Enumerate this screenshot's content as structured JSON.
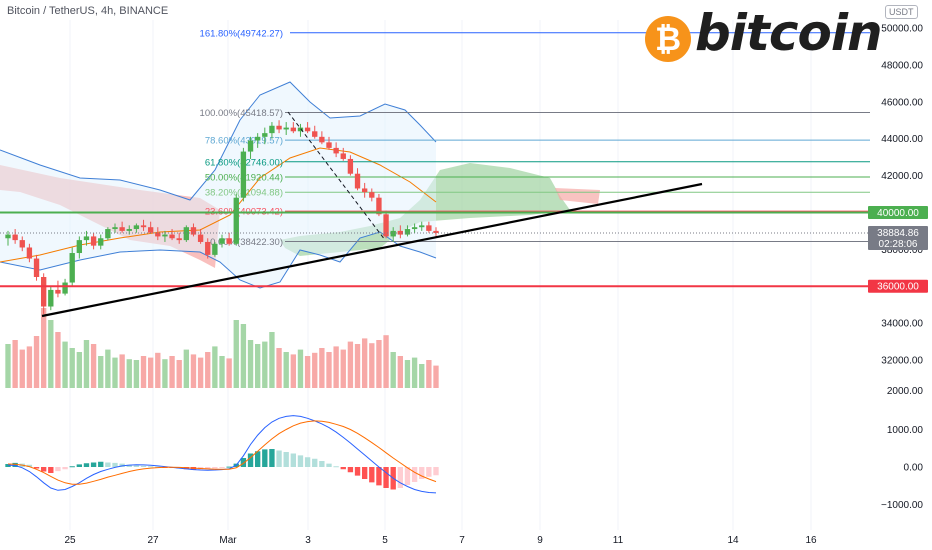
{
  "header": {
    "title": "Bitcoin / TetherUS, 4h, BINANCE"
  },
  "logo": {
    "symbol": "₿",
    "text": "bitcoin"
  },
  "unit_badge": "USDT",
  "chart_data": {
    "type": "candlestick",
    "title": "Bitcoin / TetherUS, 4h, BINANCE",
    "y_range": [
      30500,
      50500
    ],
    "y_ticks": [
      {
        "value": 50000,
        "label": "50000.00"
      },
      {
        "value": 48000,
        "label": "48000.00"
      },
      {
        "value": 46000,
        "label": "46000.00"
      },
      {
        "value": 44000,
        "label": "44000.00"
      },
      {
        "value": 42000,
        "label": "42000.00"
      },
      {
        "value": 38000,
        "label": "38000.00"
      },
      {
        "value": 34000,
        "label": "34000.00"
      },
      {
        "value": 32000,
        "label": "32000.00"
      }
    ],
    "x_ticks": [
      "25",
      "27",
      "Mar",
      "3",
      "5",
      "7",
      "9",
      "11",
      "14",
      "16"
    ],
    "price_tags": [
      {
        "value": 40000,
        "label": "40000.00",
        "color": "#4caf50"
      },
      {
        "value": 36000,
        "label": "36000.00",
        "color": "#f23645"
      },
      {
        "value": 38884.86,
        "label": "38884.86",
        "sublabel": "02:28:06",
        "color": "#787b86"
      }
    ],
    "fib_levels": [
      {
        "label": "161.80%(49742.27)",
        "value": 49742.27,
        "color": "#2962ff"
      },
      {
        "label": "100.00%(45418.57)",
        "value": 45418.57,
        "color": "#787b86"
      },
      {
        "label": "78.60%(43919.57)",
        "value": 43919.57,
        "color": "#5fa8d3"
      },
      {
        "label": "61.80%(42746.00)",
        "value": 42746.0,
        "color": "#089981"
      },
      {
        "label": "50.00%(41920.44)",
        "value": 41920.44,
        "color": "#4caf50"
      },
      {
        "label": "38.20%(41094.88)",
        "value": 41094.88,
        "color": "#81c784"
      },
      {
        "label": "23.60%(40073.42)",
        "value": 40073.42,
        "color": "#f7525f"
      },
      {
        "label": "0.00%(38422.30)",
        "value": 38422.3,
        "color": "#787b86"
      }
    ],
    "candles_ohlc": [
      [
        38600,
        39000,
        38200,
        38800
      ],
      [
        38800,
        39100,
        38300,
        38500
      ],
      [
        38500,
        38700,
        37900,
        38100
      ],
      [
        38100,
        38300,
        37300,
        37500
      ],
      [
        37500,
        37700,
        36300,
        36500
      ],
      [
        36500,
        36700,
        34500,
        34900
      ],
      [
        34900,
        36000,
        34700,
        35800
      ],
      [
        35800,
        36300,
        35400,
        35600
      ],
      [
        35600,
        36400,
        35500,
        36200
      ],
      [
        36200,
        38100,
        36000,
        37800
      ],
      [
        37800,
        38700,
        37500,
        38500
      ],
      [
        38500,
        39000,
        38200,
        38700
      ],
      [
        38700,
        38900,
        38000,
        38200
      ],
      [
        38200,
        38800,
        38000,
        38600
      ],
      [
        38600,
        39200,
        38500,
        39100
      ],
      [
        39100,
        39400,
        38900,
        39200
      ],
      [
        39200,
        39500,
        38900,
        39000
      ],
      [
        39000,
        39300,
        38800,
        39100
      ],
      [
        39100,
        39400,
        38900,
        39300
      ],
      [
        39300,
        39600,
        39000,
        39200
      ],
      [
        39200,
        39500,
        38900,
        38900
      ],
      [
        38900,
        39200,
        38500,
        38700
      ],
      [
        38700,
        39000,
        38400,
        38800
      ],
      [
        38800,
        39100,
        38500,
        38600
      ],
      [
        38600,
        38900,
        38300,
        38500
      ],
      [
        38500,
        39300,
        38400,
        39200
      ],
      [
        39200,
        39400,
        38700,
        38800
      ],
      [
        38800,
        39100,
        38300,
        38400
      ],
      [
        38400,
        38600,
        37500,
        37700
      ],
      [
        37700,
        38400,
        37600,
        38300
      ],
      [
        38300,
        38800,
        38100,
        38600
      ],
      [
        38600,
        38900,
        38200,
        38300
      ],
      [
        38300,
        41000,
        38200,
        40800
      ],
      [
        40800,
        43500,
        40600,
        43300
      ],
      [
        43300,
        44100,
        42900,
        43900
      ],
      [
        43900,
        44300,
        43500,
        44100
      ],
      [
        44100,
        44600,
        43700,
        44300
      ],
      [
        44300,
        44900,
        44000,
        44700
      ],
      [
        44700,
        45000,
        44300,
        44500
      ],
      [
        44500,
        44900,
        44200,
        44600
      ],
      [
        44600,
        44900,
        44300,
        44400
      ],
      [
        44400,
        44800,
        44100,
        44600
      ],
      [
        44600,
        44900,
        44300,
        44400
      ],
      [
        44400,
        44700,
        44000,
        44100
      ],
      [
        44100,
        44400,
        43700,
        43800
      ],
      [
        43800,
        44100,
        43400,
        43500
      ],
      [
        43500,
        43800,
        43000,
        43200
      ],
      [
        43200,
        43500,
        42800,
        42900
      ],
      [
        42900,
        43100,
        42000,
        42100
      ],
      [
        42100,
        42400,
        41200,
        41300
      ],
      [
        41300,
        41600,
        40800,
        41100
      ],
      [
        41100,
        41300,
        40600,
        40800
      ],
      [
        40800,
        41000,
        39800,
        39900
      ],
      [
        39900,
        40100,
        38600,
        38700
      ],
      [
        38700,
        39200,
        38400,
        39000
      ],
      [
        39000,
        39300,
        38600,
        38800
      ],
      [
        38800,
        39300,
        38700,
        39100
      ],
      [
        39100,
        39400,
        38900,
        39200
      ],
      [
        39200,
        39500,
        39000,
        39300
      ],
      [
        39300,
        39500,
        38900,
        39000
      ],
      [
        39000,
        39200,
        38700,
        38884.86
      ]
    ],
    "volume": [
      55,
      60,
      48,
      52,
      65,
      100,
      85,
      70,
      58,
      50,
      45,
      60,
      55,
      40,
      48,
      38,
      42,
      36,
      35,
      40,
      38,
      44,
      36,
      40,
      35,
      48,
      42,
      38,
      45,
      52,
      40,
      37,
      85,
      80,
      60,
      55,
      58,
      70,
      50,
      45,
      42,
      48,
      40,
      44,
      50,
      45,
      52,
      48,
      58,
      55,
      62,
      56,
      60,
      66,
      45,
      40,
      35,
      38,
      30,
      35,
      28
    ],
    "volume_ticks": [
      {
        "value": 2000,
        "label": "2000.00"
      }
    ],
    "macd_ticks": [
      {
        "value": 1000,
        "label": "1000.00"
      },
      {
        "value": 0,
        "label": "0.00"
      },
      {
        "value": -1000,
        "label": "−1000.00"
      }
    ],
    "macd_hist": [
      80,
      110,
      90,
      60,
      -40,
      -120,
      -160,
      -110,
      -60,
      20,
      70,
      100,
      120,
      140,
      120,
      110,
      90,
      60,
      40,
      30,
      20,
      10,
      -10,
      -20,
      -40,
      -60,
      -80,
      -70,
      -60,
      -40,
      -20,
      10,
      90,
      240,
      360,
      420,
      470,
      480,
      440,
      400,
      360,
      310,
      260,
      220,
      160,
      90,
      20,
      -60,
      -140,
      -230,
      -320,
      -410,
      -490,
      -560,
      -600,
      -560,
      -480,
      -400,
      -320,
      -260,
      -220
    ],
    "macd_line": [
      50,
      40,
      -20,
      -120,
      -260,
      -420,
      -560,
      -620,
      -600,
      -520,
      -420,
      -300,
      -200,
      -120,
      -60,
      -10,
      30,
      50,
      60,
      55,
      45,
      30,
      10,
      -10,
      -30,
      -50,
      -70,
      -80,
      -85,
      -80,
      -70,
      -50,
      50,
      300,
      600,
      850,
      1050,
      1200,
      1300,
      1350,
      1370,
      1350,
      1300,
      1230,
      1150,
      1050,
      930,
      790,
      640,
      480,
      320,
      160,
      0,
      -150,
      -300,
      -420,
      -520,
      -600,
      -650,
      -680,
      -690
    ],
    "signal_line": [
      80,
      75,
      50,
      10,
      -60,
      -150,
      -250,
      -350,
      -420,
      -460,
      -460,
      -430,
      -380,
      -330,
      -270,
      -220,
      -170,
      -120,
      -80,
      -50,
      -30,
      -15,
      -5,
      -5,
      -10,
      -20,
      -30,
      -40,
      -50,
      -58,
      -60,
      -58,
      -20,
      100,
      250,
      420,
      590,
      750,
      890,
      1000,
      1100,
      1170,
      1210,
      1230,
      1220,
      1190,
      1140,
      1080,
      1000,
      900,
      780,
      650,
      520,
      380,
      240,
      110,
      -20,
      -140,
      -240,
      -320,
      -390
    ]
  }
}
